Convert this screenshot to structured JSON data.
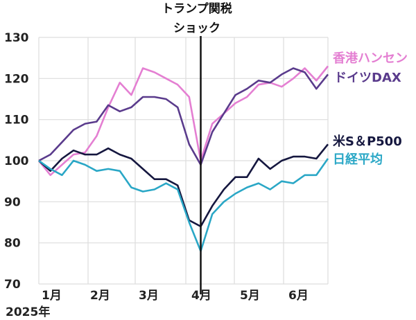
{
  "chart_data": {
    "type": "line",
    "title": "",
    "xlabel": "2025年",
    "ylabel": "",
    "ylim": [
      70,
      130
    ],
    "yticks": [
      "70",
      "80",
      "90",
      "100",
      "110",
      "120",
      "130"
    ],
    "month_labels": [
      "1月",
      "2月",
      "3月",
      "4月",
      "5月",
      "6月"
    ],
    "year_label": "2025年",
    "grid": true,
    "annotation": {
      "line1": "トランプ関税",
      "line2": "ショック",
      "x_index": 14
    },
    "x": [
      0,
      1,
      2,
      3,
      4,
      5,
      6,
      7,
      8,
      9,
      10,
      11,
      12,
      13,
      14,
      15,
      16,
      17,
      18,
      19,
      20,
      21,
      22,
      23,
      24,
      25
    ],
    "series": [
      {
        "name": "香港ハンセン",
        "color": "#e47fd2",
        "values": [
          100,
          96.5,
          99,
          101.5,
          102,
          106,
          113,
          119,
          116,
          122.5,
          121.5,
          120,
          118.5,
          115.5,
          100,
          109,
          111.5,
          114,
          115.5,
          118.5,
          119,
          118,
          120,
          122.5,
          119.5,
          123
        ]
      },
      {
        "name": "ドイツDAX",
        "color": "#5a3b8c",
        "values": [
          100,
          101.5,
          104.5,
          107.5,
          109,
          109.5,
          113.5,
          112,
          113,
          115.5,
          115.5,
          115,
          113,
          104,
          99,
          107,
          111.5,
          116,
          117.5,
          119.5,
          119,
          121,
          122.5,
          121.5,
          117.5,
          121
        ]
      },
      {
        "name": "米S＆P500",
        "color": "#15173f",
        "values": [
          100,
          97.5,
          100.5,
          102.5,
          101.5,
          101.5,
          103,
          101.5,
          100.5,
          98,
          95.5,
          95.5,
          94,
          85.5,
          84,
          89,
          93,
          96,
          96,
          100.5,
          98,
          100,
          101,
          101,
          100.5,
          104
        ]
      },
      {
        "name": "日経平均",
        "color": "#2aa7c6",
        "values": [
          100,
          98,
          96.5,
          100,
          99,
          97.5,
          98,
          97.5,
          93.5,
          92.5,
          93,
          94.5,
          93,
          85,
          78,
          87,
          90,
          92,
          93.5,
          94.5,
          93,
          95,
          94.5,
          96.5,
          96.5,
          100.5
        ]
      }
    ]
  }
}
